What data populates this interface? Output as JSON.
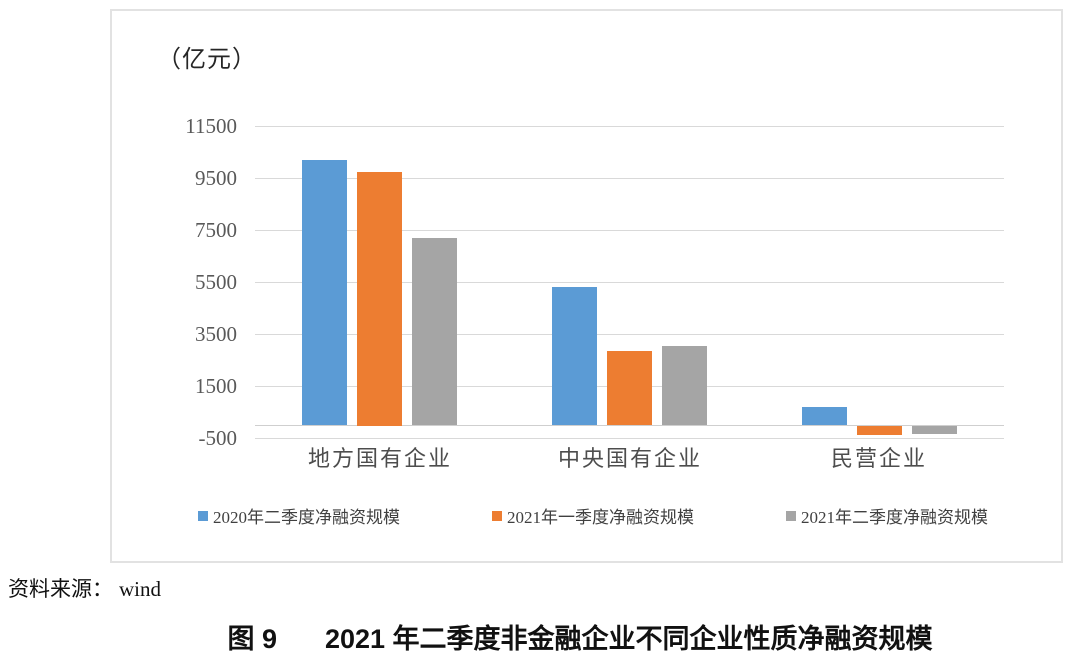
{
  "figure": {
    "unit_label": "（亿元）",
    "source_label": "资料来源：",
    "source_value": "wind",
    "caption_number": "图 9",
    "caption_title": "2021 年二季度非金融企业不同企业性质净融资规模"
  },
  "chart_data": {
    "type": "bar",
    "unit": "亿元",
    "title": "2021年二季度非金融企业不同企业性质净融资规模",
    "categories": [
      "地方国有企业",
      "中央国有企业",
      "民营企业"
    ],
    "series": [
      {
        "name": "2020年二季度净融资规模",
        "color": "#5B9BD5",
        "values": [
          10200,
          5300,
          700
        ]
      },
      {
        "name": "2021年一季度净融资规模",
        "color": "#ED7D31",
        "values": [
          9750,
          2850,
          -350
        ]
      },
      {
        "name": "2021年二季度净融资规模",
        "color": "#A5A5A5",
        "values": [
          7200,
          3050,
          -300
        ]
      }
    ],
    "y_axis": {
      "label": "（亿元）",
      "ticks": [
        11500,
        9500,
        7500,
        5500,
        3500,
        1500,
        -500
      ],
      "min": -500,
      "max": 11500,
      "grid": true
    },
    "legend_position": "bottom",
    "grid_color": "#D9D9D9",
    "axis_text_color": "#595959"
  }
}
